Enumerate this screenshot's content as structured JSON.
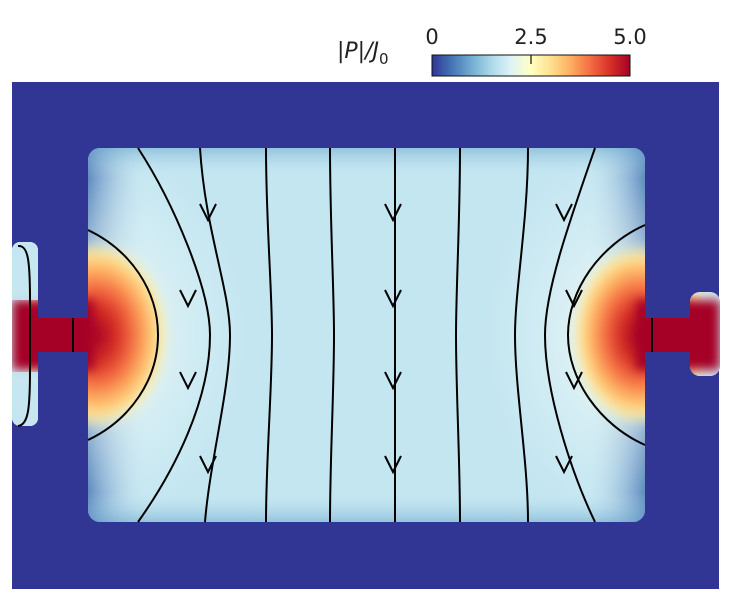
{
  "chart_data": {
    "type": "heatmap",
    "title": "",
    "colorbar": {
      "label": "|P|/J",
      "label_subscript": "0",
      "ticks": [
        "0",
        "2.5",
        "5.0"
      ],
      "tick_values": [
        0,
        2.5,
        5.0
      ],
      "range": [
        0,
        5.0
      ],
      "colormap": [
        "#313695",
        "#4575b4",
        "#74add1",
        "#abd9e9",
        "#e0f3f8",
        "#ffffbf",
        "#fee090",
        "#fdae61",
        "#f46d43",
        "#d73027",
        "#a50026"
      ]
    },
    "field": {
      "background_value": 0,
      "central_region_value": 1.6,
      "contact_region_value": 5.0
    },
    "streamlines": {
      "count": 12,
      "arrow_direction": "downward in center, outward toward contacts",
      "color": "#000000"
    }
  },
  "colors": {
    "background": "#313695",
    "region_base": "#c4e6f1",
    "hot": "#a50026"
  }
}
